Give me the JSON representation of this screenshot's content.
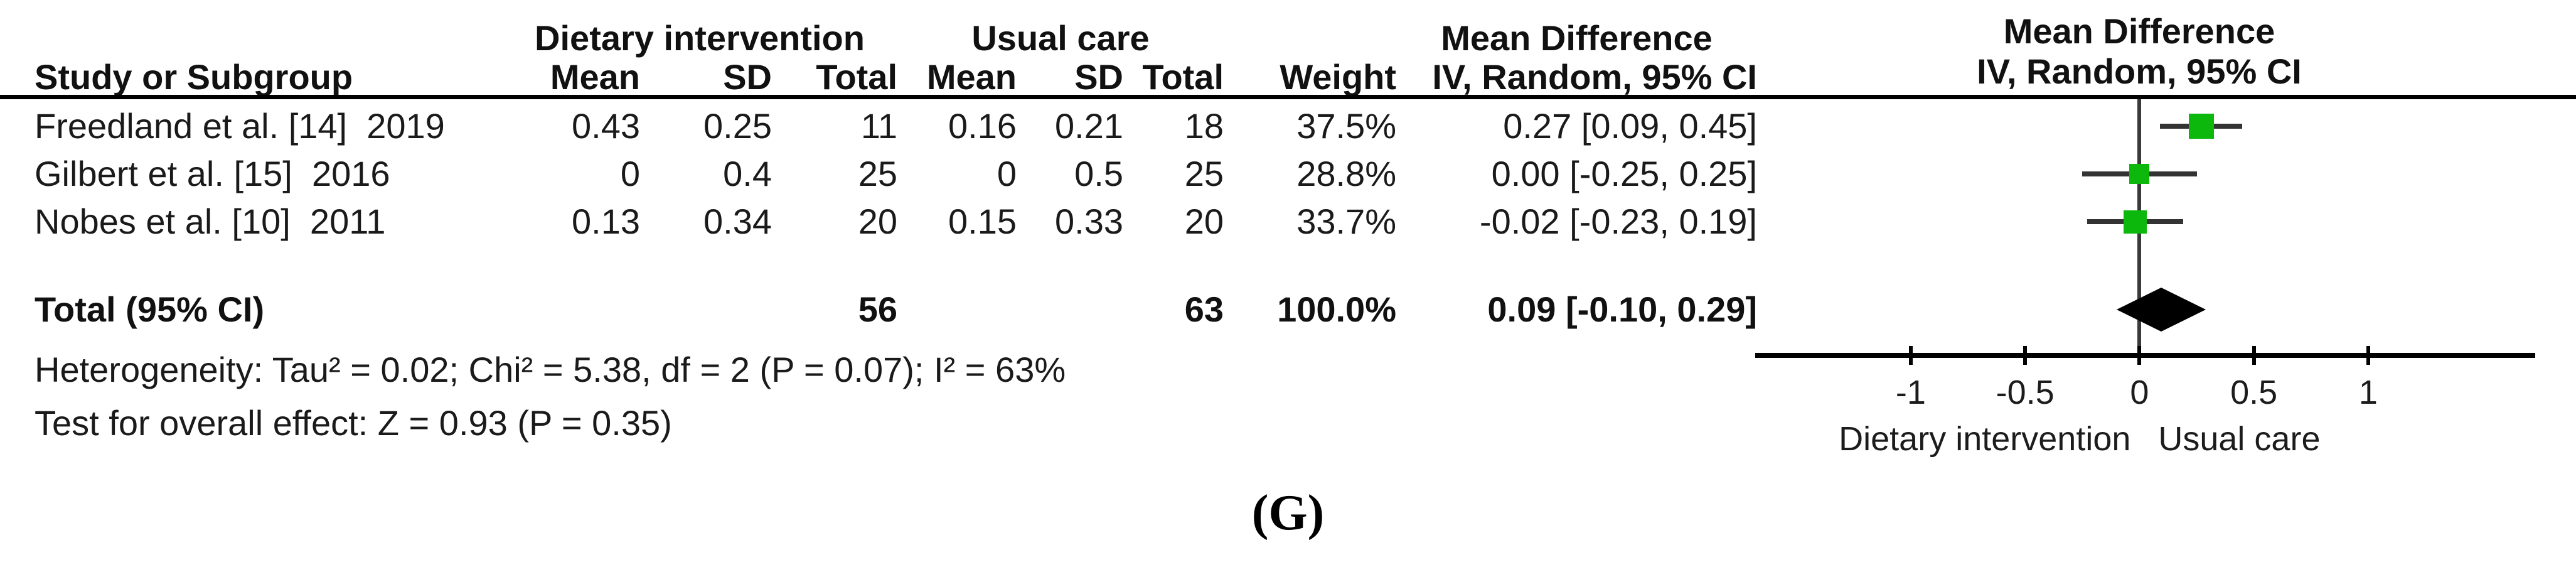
{
  "table": {
    "group_headers": {
      "group1": "Dietary intervention",
      "group2": "Usual care",
      "effect": "Mean Difference"
    },
    "columns": {
      "study": "Study or Subgroup",
      "mean": "Mean",
      "sd": "SD",
      "total": "Total",
      "weight": "Weight",
      "ci": "IV, Random, 95% CI"
    },
    "rows": [
      {
        "name": "Freedland et al. [14]  2019",
        "mean1": "0.43",
        "sd1": "0.25",
        "total1": "11",
        "mean2": "0.16",
        "sd2": "0.21",
        "total2": "18",
        "weight": "37.5%",
        "ci": "0.27 [0.09, 0.45]"
      },
      {
        "name": "Gilbert et al. [15]  2016",
        "mean1": "0",
        "sd1": "0.4",
        "total1": "25",
        "mean2": "0",
        "sd2": "0.5",
        "total2": "25",
        "weight": "28.8%",
        "ci": "0.00 [-0.25, 0.25]"
      },
      {
        "name": "Nobes et al. [10]  2011",
        "mean1": "0.13",
        "sd1": "0.34",
        "total1": "20",
        "mean2": "0.15",
        "sd2": "0.33",
        "total2": "20",
        "weight": "33.7%",
        "ci": "-0.02 [-0.23, 0.19]"
      }
    ],
    "total_row": {
      "label": "Total (95% CI)",
      "total1": "56",
      "total2": "63",
      "weight": "100.0%",
      "ci": "0.09 [-0.10, 0.29]"
    },
    "heterogeneity": "Heterogeneity: Tau² = 0.02; Chi² = 5.38, df = 2 (P = 0.07); I² = 63%",
    "overall_effect": "Test for overall effect: Z = 0.93 (P = 0.35)"
  },
  "plot": {
    "title": "Mean Difference",
    "subtitle": "IV, Random, 95% CI"
  },
  "panel_label": "(G)",
  "chart_data": {
    "type": "forest_plot",
    "title": "Mean Difference",
    "method": "IV, Random, 95% CI",
    "x_axis": {
      "ticks": [
        -1,
        -0.5,
        0,
        0.5,
        1
      ],
      "tick_labels": [
        "-1",
        "-0.5",
        "0",
        "0.5",
        "1"
      ],
      "range": [
        -1.68,
        1.73
      ],
      "label_left": "Dietary intervention",
      "label_right": "Usual care"
    },
    "studies": [
      {
        "name": "Freedland et al. [14] 2019",
        "intervention": {
          "mean": 0.43,
          "sd": 0.25,
          "total": 11
        },
        "usual_care": {
          "mean": 0.16,
          "sd": 0.21,
          "total": 18
        },
        "weight_pct": 37.5,
        "md": 0.27,
        "ci_low": 0.09,
        "ci_high": 0.45
      },
      {
        "name": "Gilbert et al. [15] 2016",
        "intervention": {
          "mean": 0,
          "sd": 0.4,
          "total": 25
        },
        "usual_care": {
          "mean": 0,
          "sd": 0.5,
          "total": 25
        },
        "weight_pct": 28.8,
        "md": 0.0,
        "ci_low": -0.25,
        "ci_high": 0.25
      },
      {
        "name": "Nobes et al. [10] 2011",
        "intervention": {
          "mean": 0.13,
          "sd": 0.34,
          "total": 20
        },
        "usual_care": {
          "mean": 0.15,
          "sd": 0.33,
          "total": 20
        },
        "weight_pct": 33.7,
        "md": -0.02,
        "ci_low": -0.23,
        "ci_high": 0.19
      }
    ],
    "overall": {
      "label": "Total (95% CI)",
      "total_intervention": 56,
      "total_usual_care": 63,
      "weight_pct": 100.0,
      "md": 0.09,
      "ci_low": -0.1,
      "ci_high": 0.29
    },
    "heterogeneity": {
      "tau2": 0.02,
      "chi2": 5.38,
      "df": 2,
      "p": 0.07,
      "i2_pct": 63
    },
    "overall_effect_test": {
      "z": 0.93,
      "p": 0.35
    },
    "colors": {
      "square": "#0DB80D",
      "diamond": "#000000",
      "line": "#333333"
    }
  }
}
